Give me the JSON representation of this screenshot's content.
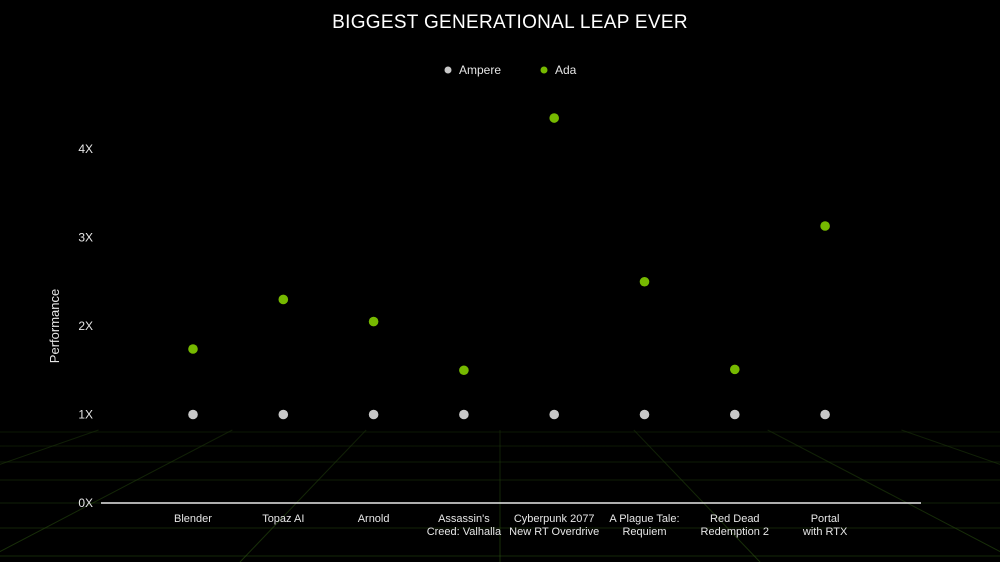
{
  "chart_data": {
    "type": "scatter",
    "title": "BIGGEST GENERATIONAL LEAP EVER",
    "xlabel": "",
    "ylabel": "Performance",
    "categories": [
      [
        "Blender"
      ],
      [
        "Topaz AI"
      ],
      [
        "Arnold"
      ],
      [
        "Assassin's",
        "Creed: Valhalla"
      ],
      [
        "Cyberpunk 2077",
        "New RT Overdrive"
      ],
      [
        "A Plague Tale:",
        "Requiem"
      ],
      [
        "Red Dead",
        "Redemption 2"
      ],
      [
        "Portal",
        "with RTX"
      ]
    ],
    "y_ticks": [
      "0X",
      "1X",
      "2X",
      "3X",
      "4X"
    ],
    "ylim": [
      0,
      4.5
    ],
    "series": [
      {
        "name": "Ampere",
        "color": "#c8c8c8",
        "values": [
          1,
          1,
          1,
          1,
          1,
          1,
          1,
          1
        ]
      },
      {
        "name": "Ada",
        "color": "#76b900",
        "values": [
          1.74,
          2.3,
          2.05,
          1.5,
          4.35,
          2.5,
          1.51,
          3.13
        ]
      }
    ],
    "legend": "top-center",
    "grid": false
  }
}
